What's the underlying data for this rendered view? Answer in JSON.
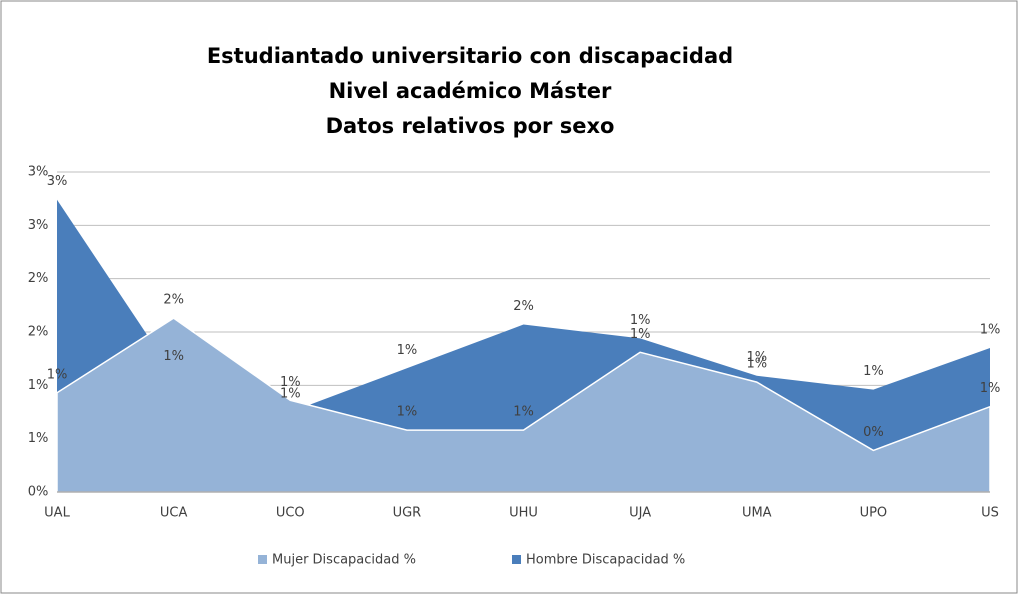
{
  "chart_data": {
    "type": "area",
    "title": [
      "Estudiantado universitario con discapacidad",
      "Nivel académico Máster",
      "Datos relativos por sexo"
    ],
    "categories": [
      "UAL",
      "UCA",
      "UCO",
      "UGR",
      "UHU",
      "UJA",
      "UMA",
      "UPO",
      "US"
    ],
    "series": [
      {
        "name": "Mujer Discapacidad %",
        "color": "#95b3d7",
        "values": [
          0.93,
          1.63,
          0.86,
          0.58,
          0.58,
          1.31,
          1.03,
          0.39,
          0.8
        ],
        "value_labels": [
          "1%",
          "2%",
          "1%",
          "1%",
          "1%",
          "1%",
          "1%",
          "0%",
          "1%"
        ]
      },
      {
        "name": "Hombre Discapacidad %",
        "color": "#4a7ebb",
        "values": [
          2.74,
          1.1,
          0.75,
          1.16,
          1.57,
          1.44,
          1.09,
          0.96,
          1.35
        ],
        "value_labels": [
          "3%",
          "1%",
          "1%",
          "1%",
          "2%",
          "1%",
          "1%",
          "1%",
          "1%"
        ]
      }
    ],
    "ylim": [
      0,
      3
    ],
    "yticks": [
      {
        "value": 0,
        "label": "0%"
      },
      {
        "value": 0.5,
        "label": "1%"
      },
      {
        "value": 1,
        "label": "1%"
      },
      {
        "value": 1.5,
        "label": "2%"
      },
      {
        "value": 2,
        "label": "2%"
      },
      {
        "value": 2.5,
        "label": "3%"
      },
      {
        "value": 3,
        "label": "3%"
      }
    ],
    "grid": true,
    "legend": "bottom"
  }
}
